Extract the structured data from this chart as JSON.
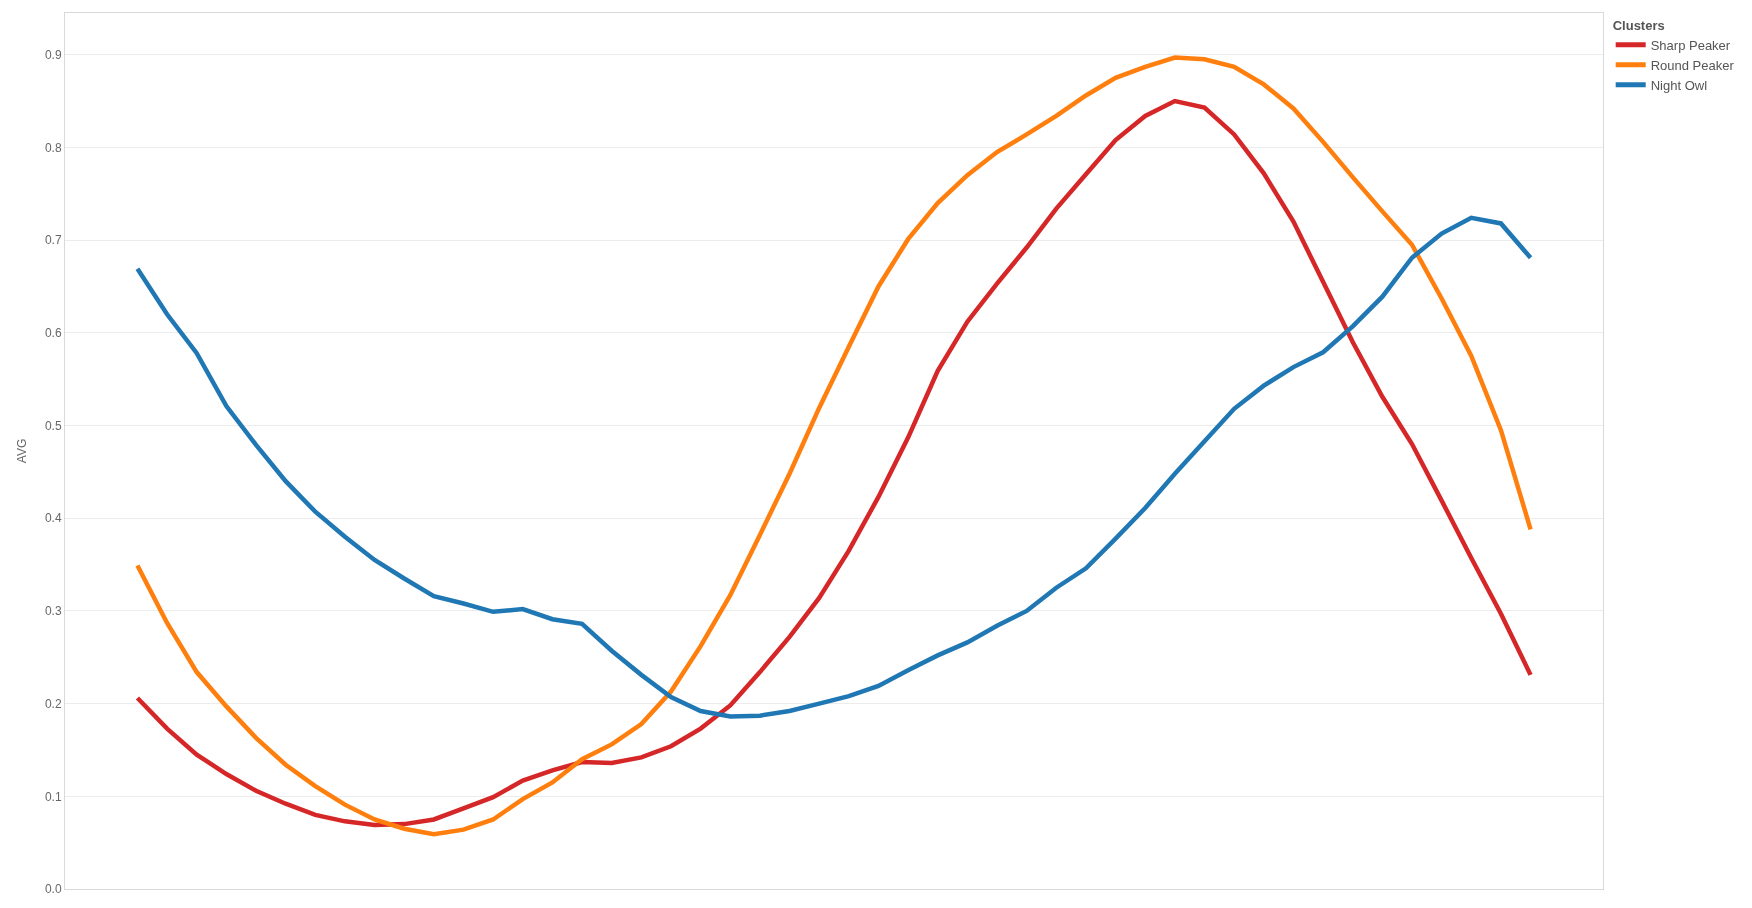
{
  "chart_data": {
    "type": "line",
    "ylabel": "AVG",
    "legend_title": "Clusters",
    "legend": "top right",
    "grid": "y",
    "marker": "none",
    "line_style": "solid",
    "tick_labels": "y",
    "categories": [
      null,
      null,
      null,
      null,
      null,
      null,
      null,
      null,
      null,
      null,
      null,
      null,
      null,
      null,
      null,
      null,
      null,
      null,
      null,
      null,
      null,
      null,
      null,
      null,
      null,
      null,
      null,
      null,
      null,
      null,
      null,
      null,
      null,
      null,
      null,
      null,
      null,
      null,
      null,
      null,
      null,
      null,
      null,
      null,
      null,
      null,
      null,
      null
    ],
    "ylim": [
      0,
      0.945
    ],
    "yticks": [
      {
        "value": 0,
        "label": "0.0"
      },
      0.1,
      0.2,
      0.3,
      0.4,
      0.5,
      0.6,
      0.7,
      0.8,
      0.9
    ],
    "series": [
      {
        "name": "Sharp Peaker",
        "color": "#d62728",
        "values": [
          0.206,
          0.173,
          0.145,
          0.124,
          0.106,
          0.092,
          0.08,
          0.073,
          0.069,
          0.07,
          0.075,
          0.087,
          0.099,
          0.117,
          0.128,
          0.137,
          0.136,
          0.142,
          0.154,
          0.173,
          0.198,
          0.234,
          0.272,
          0.314,
          0.365,
          0.423,
          0.487,
          0.559,
          0.612,
          0.653,
          0.692,
          0.734,
          0.771,
          0.808,
          0.834,
          0.85,
          0.843,
          0.814,
          0.772,
          0.72,
          0.655,
          0.59,
          0.531,
          0.48,
          0.419,
          0.357,
          0.297,
          0.231
        ]
      },
      {
        "name": "Round Peaker",
        "color": "#ff7f0e",
        "values": [
          0.349,
          0.287,
          0.234,
          0.197,
          0.163,
          0.134,
          0.111,
          0.091,
          0.075,
          0.065,
          0.059,
          0.064,
          0.075,
          0.097,
          0.115,
          0.14,
          0.156,
          0.178,
          0.213,
          0.262,
          0.317,
          0.382,
          0.448,
          0.519,
          0.585,
          0.65,
          0.701,
          0.74,
          0.77,
          0.795,
          0.814,
          0.834,
          0.856,
          0.875,
          0.887,
          0.897,
          0.895,
          0.887,
          0.868,
          0.842,
          0.806,
          0.768,
          0.731,
          0.695,
          0.637,
          0.575,
          0.495,
          0.388
        ]
      },
      {
        "name": "Night Owl",
        "color": "#1f77b4",
        "values": [
          0.669,
          0.62,
          0.578,
          0.521,
          0.479,
          0.44,
          0.407,
          0.38,
          0.355,
          0.335,
          0.316,
          0.308,
          0.299,
          0.302,
          0.291,
          0.286,
          0.257,
          0.231,
          0.207,
          0.192,
          0.186,
          0.187,
          0.192,
          0.2,
          0.208,
          0.219,
          0.236,
          0.252,
          0.266,
          0.284,
          0.3,
          0.325,
          0.346,
          0.378,
          0.411,
          0.448,
          0.483,
          0.518,
          0.543,
          0.563,
          0.579,
          0.607,
          0.639,
          0.681,
          0.707,
          0.724,
          0.718,
          0.681
        ]
      }
    ]
  }
}
